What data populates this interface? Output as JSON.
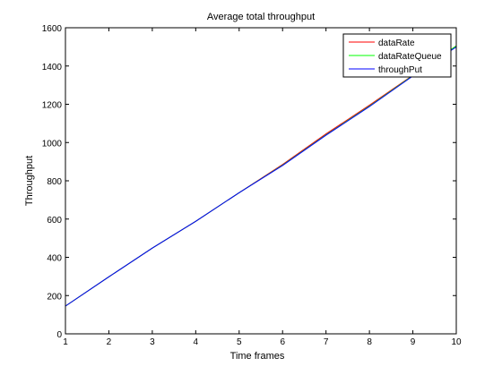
{
  "chart_data": {
    "type": "line",
    "title": "Average total throughput",
    "xlabel": "Time frames",
    "ylabel": "Throughput",
    "xlim": [
      1,
      10
    ],
    "ylim": [
      0,
      1600
    ],
    "xticks": [
      1,
      2,
      3,
      4,
      5,
      6,
      7,
      8,
      9,
      10
    ],
    "yticks": [
      0,
      200,
      400,
      600,
      800,
      1000,
      1200,
      1400,
      1600
    ],
    "grid": false,
    "legend_position": "top-right",
    "series": [
      {
        "name": "dataRate",
        "color": "#ff0000",
        "x": [
          1,
          2,
          3,
          4,
          5,
          6,
          7,
          8,
          9,
          10
        ],
        "y": [
          145,
          298,
          448,
          588,
          738,
          885,
          1045,
          1195,
          1352,
          1505
        ]
      },
      {
        "name": "dataRateQueue",
        "color": "#00ff00",
        "x": [
          1,
          2,
          3,
          4,
          5,
          6,
          7,
          8,
          9,
          10
        ],
        "y": [
          145,
          298,
          448,
          588,
          738,
          882,
          1040,
          1190,
          1350,
          1505
        ]
      },
      {
        "name": "throughPut",
        "color": "#0000ff",
        "x": [
          1,
          2,
          3,
          4,
          5,
          6,
          7,
          8,
          9,
          10
        ],
        "y": [
          145,
          298,
          448,
          588,
          738,
          880,
          1038,
          1188,
          1348,
          1500
        ]
      }
    ]
  }
}
